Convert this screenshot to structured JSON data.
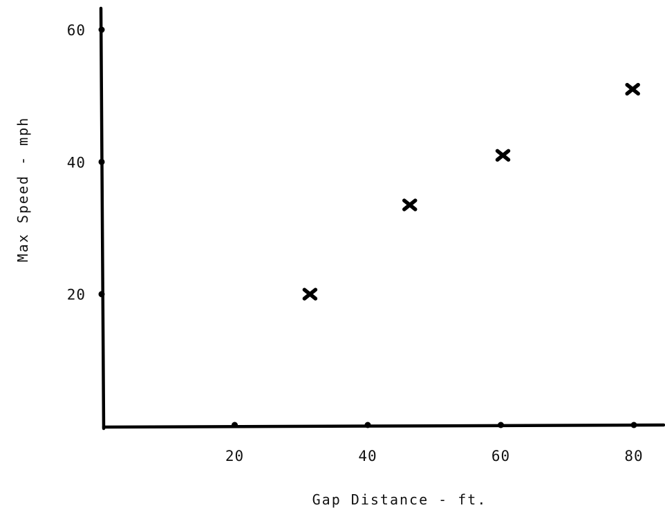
{
  "chart_data": {
    "type": "scatter",
    "title": "",
    "xlabel": "Gap Distance - ft.",
    "ylabel": "Max Speed - mph",
    "xlim": [
      0,
      80
    ],
    "ylim": [
      0,
      60
    ],
    "x_ticks": [
      20,
      40,
      60,
      80
    ],
    "y_ticks": [
      20,
      40,
      60
    ],
    "grid": false,
    "legend": "none",
    "marker": "x",
    "series": [
      {
        "points": [
          {
            "x": 31,
            "y": 20
          },
          {
            "x": 46,
            "y": 33.5
          },
          {
            "x": 60,
            "y": 41
          },
          {
            "x": 79.5,
            "y": 51
          }
        ]
      }
    ]
  }
}
